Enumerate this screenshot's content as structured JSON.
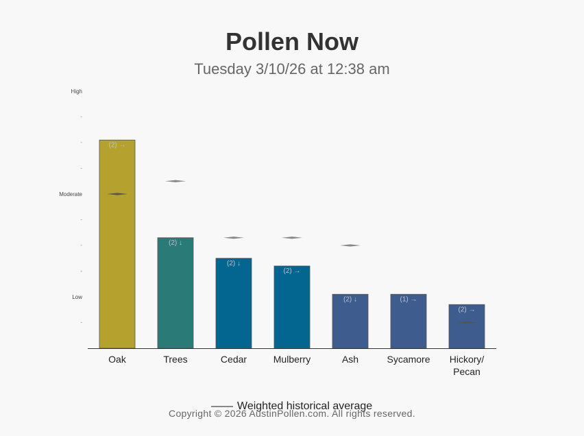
{
  "header": {
    "title": "Pollen Now",
    "subtitle": "Tuesday 3/10/26 at 12:38 am"
  },
  "legend": {
    "label": "Weighted historical average"
  },
  "footer": {
    "copyright": "Copyright © 2026 AustinPollen.com.  All rights reserved."
  },
  "colors": {
    "oak": "#b5a22e",
    "trees": "#2a7a78",
    "cedar": "#036690",
    "mulberry": "#036690",
    "ash": "#3e5c8e",
    "sycamore": "#3e5c8e",
    "hickory": "#3e5c8e",
    "average_marker": "#888888"
  },
  "chart_data": {
    "type": "bar",
    "title": "Pollen Now",
    "subtitle": "Tuesday 3/10/26 at 12:38 am",
    "y_levels": [
      "Low",
      "Moderate",
      "High"
    ],
    "ylim": [
      0,
      10
    ],
    "categories": [
      "Oak",
      "Trees",
      "Cedar",
      "Mulberry",
      "Ash",
      "Sycamore",
      "Hickory/\nPecan"
    ],
    "values": [
      8.1,
      4.3,
      3.5,
      3.2,
      2.1,
      2.1,
      1.7
    ],
    "labels": [
      "(2) →",
      "(2) ↓",
      "(2) ↓",
      "(2) →",
      "(2) ↓",
      "(1) →",
      "(2) →"
    ],
    "historical_average": [
      6.0,
      6.5,
      4.3,
      4.3,
      4.0,
      null,
      1.0
    ],
    "legend": "Weighted historical average",
    "legend_position": "bottom"
  }
}
